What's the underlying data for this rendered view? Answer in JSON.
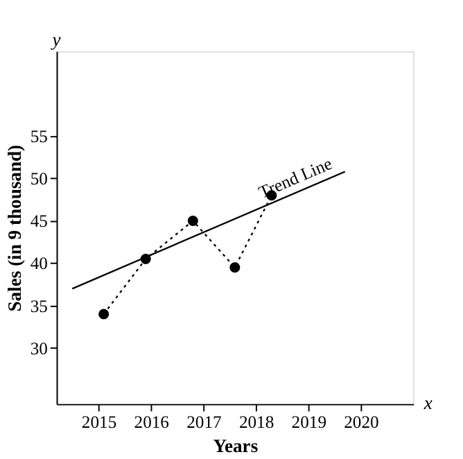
{
  "chart_data": {
    "type": "scatter",
    "xlabel": "Years",
    "ylabel": "Sales (in 9 thousand)",
    "annotations": [
      "y",
      "x"
    ],
    "xlim": [
      2014.2,
      2021
    ],
    "xticks": [
      2015,
      2016,
      2017,
      2018,
      2019,
      2020
    ],
    "ylim": [
      23.4,
      65
    ],
    "yticks": [
      30,
      35,
      40,
      45,
      50,
      55
    ],
    "grid": false,
    "series": [
      {
        "color": "#000000",
        "marker": "circle",
        "line_style": "dotted",
        "x": [
          2015.1,
          2015.9,
          2016.8,
          2017.6,
          2018.3
        ],
        "values": [
          34,
          40.5,
          45,
          39.5,
          48
        ]
      },
      {
        "type": "line",
        "name": "Trend Line",
        "color": "#000000",
        "marker": "none",
        "line_style": "solid",
        "x": [
          2014.5,
          2019.7
        ],
        "values": [
          37,
          50.8
        ]
      }
    ]
  }
}
